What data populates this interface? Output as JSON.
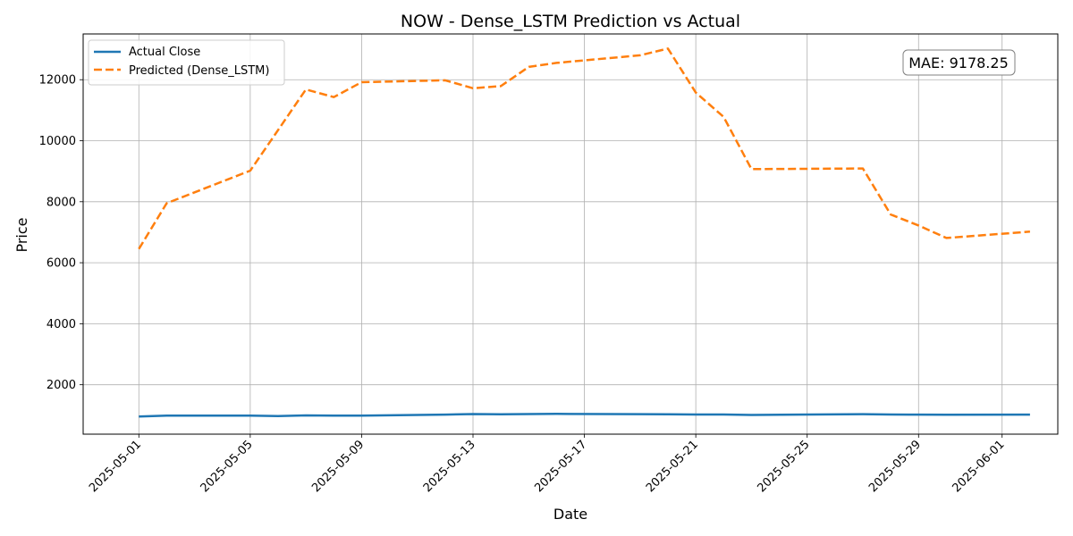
{
  "chart_data": {
    "type": "line",
    "title": "NOW - Dense_LSTM Prediction vs Actual",
    "xlabel": "Date",
    "ylabel": "Price",
    "xlim": [
      "2025-04-29",
      "2025-06-03"
    ],
    "ylim": [
      380,
      13500
    ],
    "yticks": [
      2000,
      4000,
      6000,
      8000,
      10000,
      12000
    ],
    "xticks": [
      "2025-05-01",
      "2025-05-05",
      "2025-05-09",
      "2025-05-13",
      "2025-05-17",
      "2025-05-21",
      "2025-05-25",
      "2025-05-29",
      "2025-06-01"
    ],
    "grid": true,
    "legend_position": "top-left",
    "annotation": "MAE: 9178.25",
    "series": [
      {
        "name": "Actual Close",
        "color": "#1f77b4",
        "style": "solid",
        "points": [
          {
            "x": "2025-05-01",
            "y": 960
          },
          {
            "x": "2025-05-02",
            "y": 985
          },
          {
            "x": "2025-05-05",
            "y": 990
          },
          {
            "x": "2025-05-06",
            "y": 975
          },
          {
            "x": "2025-05-07",
            "y": 995
          },
          {
            "x": "2025-05-08",
            "y": 985
          },
          {
            "x": "2025-05-09",
            "y": 990
          },
          {
            "x": "2025-05-12",
            "y": 1020
          },
          {
            "x": "2025-05-13",
            "y": 1040
          },
          {
            "x": "2025-05-14",
            "y": 1030
          },
          {
            "x": "2025-05-15",
            "y": 1040
          },
          {
            "x": "2025-05-16",
            "y": 1045
          },
          {
            "x": "2025-05-19",
            "y": 1035
          },
          {
            "x": "2025-05-20",
            "y": 1030
          },
          {
            "x": "2025-05-21",
            "y": 1025
          },
          {
            "x": "2025-05-22",
            "y": 1025
          },
          {
            "x": "2025-05-23",
            "y": 1010
          },
          {
            "x": "2025-05-27",
            "y": 1035
          },
          {
            "x": "2025-05-28",
            "y": 1025
          },
          {
            "x": "2025-05-29",
            "y": 1020
          },
          {
            "x": "2025-05-30",
            "y": 1015
          },
          {
            "x": "2025-06-02",
            "y": 1020
          }
        ]
      },
      {
        "name": "Predicted (Dense_LSTM)",
        "color": "#ff7f0e",
        "style": "dashed",
        "points": [
          {
            "x": "2025-05-01",
            "y": 6450
          },
          {
            "x": "2025-05-02",
            "y": 7950
          },
          {
            "x": "2025-05-05",
            "y": 9020
          },
          {
            "x": "2025-05-06",
            "y": 10350
          },
          {
            "x": "2025-05-07",
            "y": 11680
          },
          {
            "x": "2025-05-08",
            "y": 11430
          },
          {
            "x": "2025-05-09",
            "y": 11920
          },
          {
            "x": "2025-05-12",
            "y": 11980
          },
          {
            "x": "2025-05-13",
            "y": 11720
          },
          {
            "x": "2025-05-14",
            "y": 11790
          },
          {
            "x": "2025-05-15",
            "y": 12420
          },
          {
            "x": "2025-05-16",
            "y": 12550
          },
          {
            "x": "2025-05-19",
            "y": 12800
          },
          {
            "x": "2025-05-20",
            "y": 13020
          },
          {
            "x": "2025-05-21",
            "y": 11580
          },
          {
            "x": "2025-05-22",
            "y": 10780
          },
          {
            "x": "2025-05-23",
            "y": 9070
          },
          {
            "x": "2025-05-27",
            "y": 9090
          },
          {
            "x": "2025-05-28",
            "y": 7580
          },
          {
            "x": "2025-05-29",
            "y": 7220
          },
          {
            "x": "2025-05-30",
            "y": 6810
          },
          {
            "x": "2025-06-02",
            "y": 7020
          }
        ]
      }
    ]
  }
}
